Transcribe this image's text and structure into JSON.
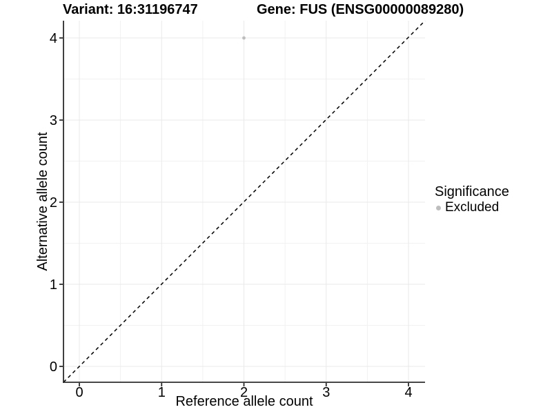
{
  "chart_data": {
    "type": "scatter",
    "titles": {
      "left": "Variant: 16:31196747",
      "right": "Gene: FUS (ENSG00000089280)"
    },
    "xlabel": "Reference allele count",
    "ylabel": "Alternative allele count",
    "xlim": [
      -0.2,
      4.2
    ],
    "ylim": [
      -0.2,
      4.2
    ],
    "x_ticks": [
      0,
      1,
      2,
      3,
      4
    ],
    "y_ticks": [
      0,
      1,
      2,
      3,
      4
    ],
    "grid": {
      "major": true,
      "minor": true,
      "minor_step": 0.5
    },
    "series": [
      {
        "name": "Excluded",
        "marker": "circle",
        "color": "#BEBEBE",
        "points": [
          [
            2,
            4
          ]
        ]
      }
    ],
    "reference_line": {
      "style": "dashed",
      "slope": 1,
      "intercept": 0,
      "color": "#000000",
      "note": "y = x identity line, corner to corner"
    },
    "legend": {
      "title": "Significance",
      "position": "right",
      "entries": [
        {
          "label": "Excluded",
          "color": "#BEBEBE"
        }
      ]
    }
  },
  "style_colors": {
    "background": "#FFFFFF",
    "axis_line": "#2B2B2B",
    "tick_mark": "#2B2B2B",
    "grid_major": "#E9E9E9",
    "grid_minor": "#F1F1F1",
    "point_gray": "#BEBEBE",
    "text": "#000000"
  }
}
